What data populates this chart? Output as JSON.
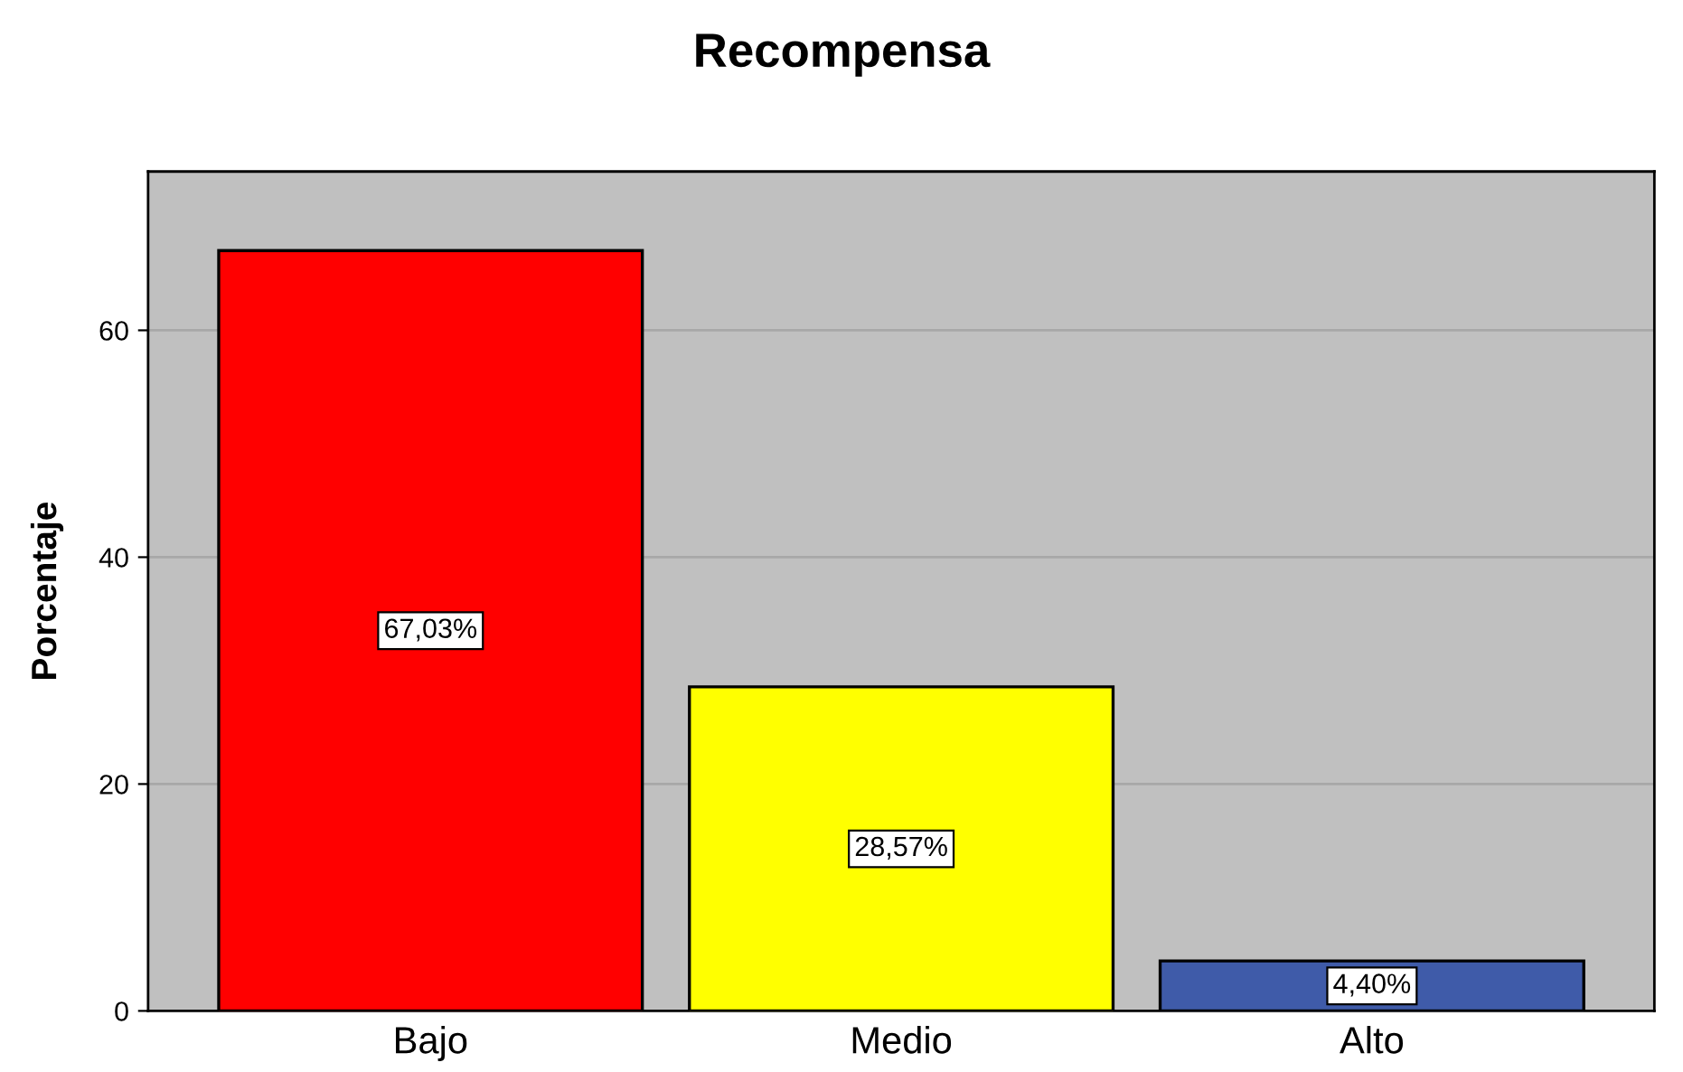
{
  "chart_data": {
    "type": "bar",
    "title": "Recompensa",
    "ylabel": "Porcentaje",
    "categories": [
      "Bajo",
      "Medio",
      "Alto"
    ],
    "values": [
      67.03,
      28.57,
      4.4
    ],
    "colors": [
      "#ff0000",
      "#ffff00",
      "#3f5ba9"
    ],
    "value_labels": [
      "67,03%",
      "28,57%",
      "4,40%"
    ],
    "ylim": [
      0,
      74
    ],
    "yticks": [
      0,
      20,
      40,
      60
    ],
    "grid": "y"
  }
}
